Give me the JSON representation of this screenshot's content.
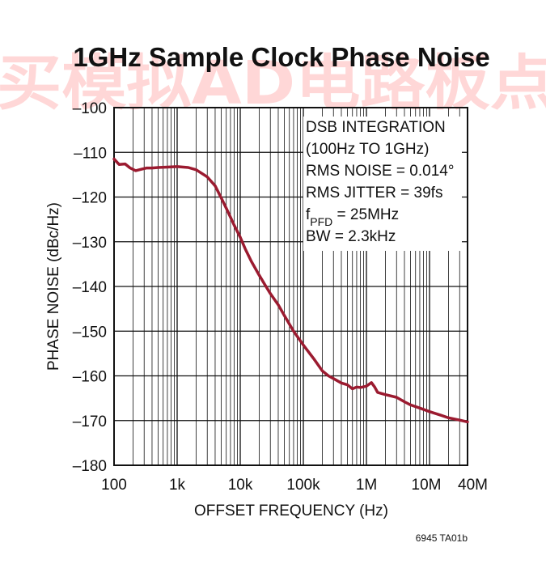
{
  "chart_data": {
    "type": "line",
    "title": "1GHz Sample Clock Phase Noise",
    "xlabel": "OFFSET FREQUENCY (Hz)",
    "ylabel": "PHASE NOISE (dBc/Hz)",
    "x_scale": "log",
    "xlim": [
      100,
      40000000
    ],
    "ylim": [
      -180,
      -100
    ],
    "x_ticks": [
      {
        "value": 100,
        "label": "100"
      },
      {
        "value": 1000,
        "label": "1k"
      },
      {
        "value": 10000,
        "label": "10k"
      },
      {
        "value": 100000,
        "label": "100k"
      },
      {
        "value": 1000000,
        "label": "1M"
      },
      {
        "value": 10000000,
        "label": "10M"
      },
      {
        "value": 40000000,
        "label": "40M"
      }
    ],
    "y_ticks": [
      {
        "value": -100,
        "label": "–100"
      },
      {
        "value": -110,
        "label": "–110"
      },
      {
        "value": -120,
        "label": "–120"
      },
      {
        "value": -130,
        "label": "–130"
      },
      {
        "value": -140,
        "label": "–140"
      },
      {
        "value": -150,
        "label": "–150"
      },
      {
        "value": -160,
        "label": "–160"
      },
      {
        "value": -170,
        "label": "–170"
      },
      {
        "value": -180,
        "label": "–180"
      }
    ],
    "grid": true,
    "line_color": "#9b1b30",
    "series": [
      {
        "x": [
          100,
          120,
          150,
          180,
          220,
          270,
          330,
          400,
          500,
          700,
          1000,
          1500,
          2000,
          3000,
          4000,
          5000,
          6000,
          7000,
          8000,
          10000,
          12000,
          15000,
          20000,
          25000,
          30000,
          40000,
          50000,
          70000,
          100000,
          150000,
          200000,
          250000,
          300000,
          400000,
          500000,
          600000,
          700000,
          800000,
          1000000,
          1200000,
          1350000,
          1500000,
          2000000,
          3000000,
          4000000,
          5000000,
          7000000,
          10000000,
          15000000,
          20000000,
          30000000,
          40000000
        ],
        "y": [
          -111.5,
          -112.7,
          -112.6,
          -113.5,
          -114.1,
          -113.8,
          -113.5,
          -113.5,
          -113.4,
          -113.3,
          -113.2,
          -113.4,
          -113.9,
          -115.5,
          -117.5,
          -120.2,
          -122.5,
          -124.5,
          -126.3,
          -129.0,
          -131.6,
          -134.4,
          -137.5,
          -139.8,
          -141.6,
          -144.1,
          -146.5,
          -150.0,
          -153.1,
          -156.4,
          -158.9,
          -160.0,
          -160.6,
          -161.6,
          -162.0,
          -162.9,
          -162.5,
          -162.6,
          -162.3,
          -161.5,
          -162.5,
          -163.7,
          -164.2,
          -164.8,
          -165.8,
          -166.5,
          -167.2,
          -168.0,
          -168.8,
          -169.4,
          -169.9,
          -170.3
        ]
      }
    ],
    "annotations": [
      {
        "parts": [
          {
            "text": "DSB INTEGRATION"
          }
        ]
      },
      {
        "parts": [
          {
            "text": "(100Hz TO 1GHz)"
          }
        ]
      },
      {
        "parts": [
          {
            "text": "RMS NOISE = 0.014°"
          }
        ]
      },
      {
        "parts": [
          {
            "text": "RMS JITTER = 39fs"
          }
        ]
      },
      {
        "parts": [
          {
            "text": "f"
          },
          {
            "text": "PFD",
            "sub": true
          },
          {
            "text": " = 25MHz"
          }
        ]
      },
      {
        "parts": [
          {
            "text": "BW = 2.3kHz"
          }
        ]
      }
    ]
  },
  "figure_code": "6945 TA01b",
  "watermark": "买模拟AD电路板点"
}
